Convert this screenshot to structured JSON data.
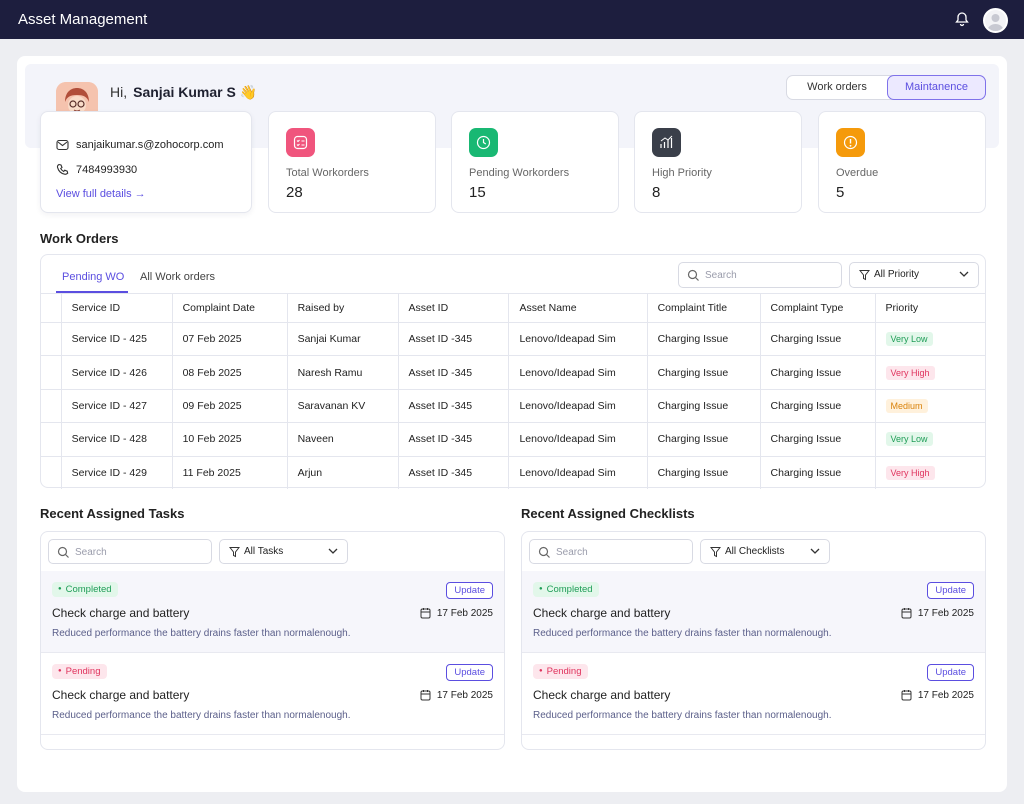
{
  "app": {
    "title": "Asset Management"
  },
  "greeting": {
    "hi": "Hi,",
    "name": "Sanjai Kumar S",
    "emoji": "👋"
  },
  "view_toggle": {
    "work_orders": "Work orders",
    "maintenance": "Maintanence",
    "selected": "Maintanence"
  },
  "contact": {
    "email": "sanjaikumar.s@zohocorp.com",
    "phone": "7484993930",
    "link": "View full details →"
  },
  "stats": [
    {
      "label": "Total Workorders",
      "value": "28",
      "icon": "list-check-icon",
      "color": "#f0557d"
    },
    {
      "label": "Pending Workorders",
      "value": "15",
      "icon": "clock-icon",
      "color": "#19b873"
    },
    {
      "label": "High Priority",
      "value": "8",
      "icon": "trend-up-icon",
      "color": "#3a3f4a"
    },
    {
      "label": "Overdue",
      "value": "5",
      "icon": "alert-icon",
      "color": "#f59a0b"
    }
  ],
  "work_orders": {
    "title": "Work Orders",
    "tabs": [
      "Pending WO",
      "All Work orders"
    ],
    "search_placeholder": "Search",
    "filter_label": "All Priority",
    "columns": [
      "Service ID",
      "Complaint Date",
      "Raised by",
      "Asset ID",
      "Asset Name",
      "Complaint Title",
      "Complaint Type",
      "Priority"
    ],
    "rows": [
      [
        "Service ID - 425",
        "07 Feb 2025",
        "Sanjai Kumar",
        "Asset ID -345",
        "Lenovo/Ideapad Sim",
        "Charging Issue",
        "Charging Issue",
        "Very Low"
      ],
      [
        "Service ID - 426",
        "08 Feb 2025",
        "Naresh Ramu",
        "Asset ID -345",
        "Lenovo/Ideapad Sim",
        "Charging Issue",
        "Charging Issue",
        "Very High"
      ],
      [
        "Service ID - 427",
        "09 Feb 2025",
        "Saravanan KV",
        "Asset ID -345",
        "Lenovo/Ideapad Sim",
        "Charging Issue",
        "Charging Issue",
        "Medium"
      ],
      [
        "Service ID - 428",
        "10 Feb 2025",
        "Naveen",
        "Asset ID -345",
        "Lenovo/Ideapad Sim",
        "Charging Issue",
        "Charging Issue",
        "Very Low"
      ],
      [
        "Service ID - 429",
        "11 Feb 2025",
        "Arjun",
        "Asset ID -345",
        "Lenovo/Ideapad Sim",
        "Charging Issue",
        "Charging Issue",
        "Very High"
      ]
    ],
    "priority_colors": {
      "Very Low": {
        "fg": "#1f9d57",
        "bg": "#e2f7ea"
      },
      "Very High": {
        "fg": "#e0345e",
        "bg": "#fde6ec"
      },
      "Medium": {
        "fg": "#d9820b",
        "bg": "#fff1dc"
      }
    }
  },
  "tasks": {
    "title": "Recent Assigned Tasks",
    "search_placeholder": "Search",
    "filter_label": "All Tasks",
    "items": [
      {
        "status": "Completed",
        "title": "Check charge and battery",
        "date": "17 Feb 2025",
        "desc": "Reduced performance the battery drains faster than normalenough.",
        "action": "Update"
      },
      {
        "status": "Pending",
        "title": "Check charge and battery",
        "date": "17 Feb 2025",
        "desc": "Reduced performance the battery drains faster than normalenough.",
        "action": "Update"
      }
    ]
  },
  "checklists": {
    "title": "Recent Assigned Checklists",
    "search_placeholder": "Search",
    "filter_label": "All Checklists",
    "items": [
      {
        "status": "Completed",
        "title": "Check charge and battery",
        "date": "17 Feb 2025",
        "desc": "Reduced performance the battery drains faster than normalenough.",
        "action": "Update"
      },
      {
        "status": "Pending",
        "title": "Check charge and battery",
        "date": "17 Feb 2025",
        "desc": "Reduced performance the battery drains faster than normalenough.",
        "action": "Update"
      }
    ]
  },
  "status_colors": {
    "Completed": {
      "fg": "#1f9d57",
      "bg": "#e2f7ea"
    },
    "Pending": {
      "fg": "#e0345e",
      "bg": "#fde6ec"
    }
  }
}
